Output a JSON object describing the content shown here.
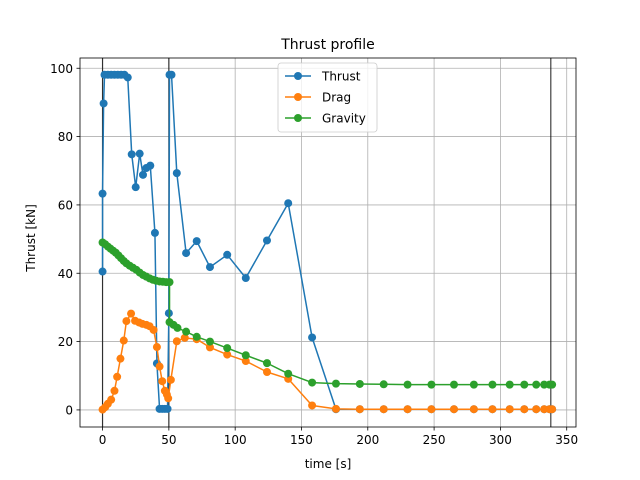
{
  "chart_data": {
    "type": "line",
    "title": "Thrust profile",
    "xlabel": "time [s]",
    "ylabel": "Thrust [kN]",
    "xlim": [
      -17,
      357
    ],
    "ylim": [
      -5,
      103
    ],
    "xticks": [
      0,
      50,
      100,
      150,
      200,
      250,
      300,
      350
    ],
    "yticks": [
      0,
      20,
      40,
      60,
      80,
      100
    ],
    "grid": true,
    "legend_position": "upper center",
    "vertical_lines": [
      0,
      50,
      338
    ],
    "series": [
      {
        "name": "Thrust",
        "color": "#1f77b4",
        "points": [
          [
            0,
            40.5
          ],
          [
            0,
            63.3
          ],
          [
            0.8,
            89.7
          ],
          [
            1.5,
            98.1
          ],
          [
            4,
            98.1
          ],
          [
            6.5,
            98.1
          ],
          [
            9,
            98.1
          ],
          [
            11.5,
            98.1
          ],
          [
            14,
            98.1
          ],
          [
            16.5,
            98.1
          ],
          [
            19,
            97.3
          ],
          [
            22,
            74.8
          ],
          [
            25,
            65.2
          ],
          [
            28,
            75.0
          ],
          [
            30.5,
            68.8
          ],
          [
            33,
            70.8
          ],
          [
            36,
            71.5
          ],
          [
            39.5,
            51.8
          ],
          [
            41,
            13.6
          ],
          [
            43,
            0.3
          ],
          [
            45,
            0.3
          ],
          [
            47,
            0.3
          ],
          [
            49,
            0.3
          ],
          [
            50,
            28.3
          ],
          [
            50.5,
            98.1
          ],
          [
            52,
            98.1
          ],
          [
            56,
            69.3
          ],
          [
            63,
            45.9
          ],
          [
            71,
            49.4
          ],
          [
            81,
            41.8
          ],
          [
            94,
            45.4
          ],
          [
            108,
            38.6
          ],
          [
            124,
            49.6
          ],
          [
            140,
            60.5
          ],
          [
            158,
            21.2
          ],
          [
            176,
            0.2
          ],
          [
            194,
            0.2
          ],
          [
            212,
            0.2
          ],
          [
            230,
            0.2
          ],
          [
            248,
            0.2
          ],
          [
            265,
            0.2
          ],
          [
            280,
            0.2
          ],
          [
            294,
            0.2
          ],
          [
            307,
            0.2
          ],
          [
            318,
            0.2
          ],
          [
            327,
            0.2
          ],
          [
            333,
            0.2
          ],
          [
            337,
            0.2
          ],
          [
            339,
            0.2
          ]
        ]
      },
      {
        "name": "Drag",
        "color": "#ff7f0e",
        "points": [
          [
            0,
            0.1
          ],
          [
            2,
            0.8
          ],
          [
            4,
            1.8
          ],
          [
            6.5,
            3.0
          ],
          [
            9,
            5.6
          ],
          [
            11,
            9.7
          ],
          [
            13.5,
            15.0
          ],
          [
            16,
            20.3
          ],
          [
            18,
            26.0
          ],
          [
            21.5,
            28.2
          ],
          [
            24.5,
            26.1
          ],
          [
            27.5,
            25.6
          ],
          [
            30,
            25.2
          ],
          [
            33,
            24.9
          ],
          [
            35.5,
            24.5
          ],
          [
            38.5,
            23.4
          ],
          [
            41,
            18.4
          ],
          [
            43,
            12.7
          ],
          [
            45,
            8.4
          ],
          [
            47,
            5.6
          ],
          [
            48.5,
            4.5
          ],
          [
            49.5,
            3.4
          ],
          [
            51.5,
            8.8
          ],
          [
            56,
            20.1
          ],
          [
            62,
            21.1
          ],
          [
            71,
            20.7
          ],
          [
            81,
            18.3
          ],
          [
            94,
            16.2
          ],
          [
            108,
            14.3
          ],
          [
            124,
            11.1
          ],
          [
            140,
            9.1
          ],
          [
            158,
            1.3
          ],
          [
            176,
            0.3
          ],
          [
            194,
            0.2
          ],
          [
            212,
            0.2
          ],
          [
            230,
            0.2
          ],
          [
            248,
            0.2
          ],
          [
            265,
            0.2
          ],
          [
            280,
            0.2
          ],
          [
            294,
            0.2
          ],
          [
            307,
            0.2
          ],
          [
            318,
            0.2
          ],
          [
            327,
            0.2
          ],
          [
            333,
            0.2
          ],
          [
            337,
            0.2
          ],
          [
            339,
            0.2
          ]
        ]
      },
      {
        "name": "Gravity",
        "color": "#2ca02c",
        "points": [
          [
            0,
            49.0
          ],
          [
            2,
            48.5
          ],
          [
            4,
            47.8
          ],
          [
            6,
            47.2
          ],
          [
            8,
            46.6
          ],
          [
            10,
            46.0
          ],
          [
            12,
            45.2
          ],
          [
            14,
            44.4
          ],
          [
            16,
            43.6
          ],
          [
            18,
            42.9
          ],
          [
            20.5,
            42.2
          ],
          [
            23,
            41.6
          ],
          [
            25.5,
            41.0
          ],
          [
            28,
            40.2
          ],
          [
            30.5,
            39.5
          ],
          [
            33,
            39.0
          ],
          [
            35.5,
            38.5
          ],
          [
            38,
            38.1
          ],
          [
            40.5,
            37.8
          ],
          [
            43,
            37.6
          ],
          [
            45.5,
            37.5
          ],
          [
            48,
            37.4
          ],
          [
            50.5,
            37.4
          ],
          [
            50.5,
            25.7
          ],
          [
            53.5,
            24.9
          ],
          [
            56.5,
            24.0
          ],
          [
            63,
            22.9
          ],
          [
            71,
            21.4
          ],
          [
            81,
            20.0
          ],
          [
            94,
            18.1
          ],
          [
            108,
            16.0
          ],
          [
            124,
            13.7
          ],
          [
            140,
            10.6
          ],
          [
            158,
            8.0
          ],
          [
            176,
            7.7
          ],
          [
            194,
            7.6
          ],
          [
            212,
            7.5
          ],
          [
            230,
            7.4
          ],
          [
            248,
            7.4
          ],
          [
            265,
            7.4
          ],
          [
            280,
            7.4
          ],
          [
            294,
            7.4
          ],
          [
            307,
            7.4
          ],
          [
            318,
            7.4
          ],
          [
            327,
            7.4
          ],
          [
            333,
            7.4
          ],
          [
            337,
            7.4
          ],
          [
            339,
            7.4
          ]
        ]
      }
    ]
  }
}
